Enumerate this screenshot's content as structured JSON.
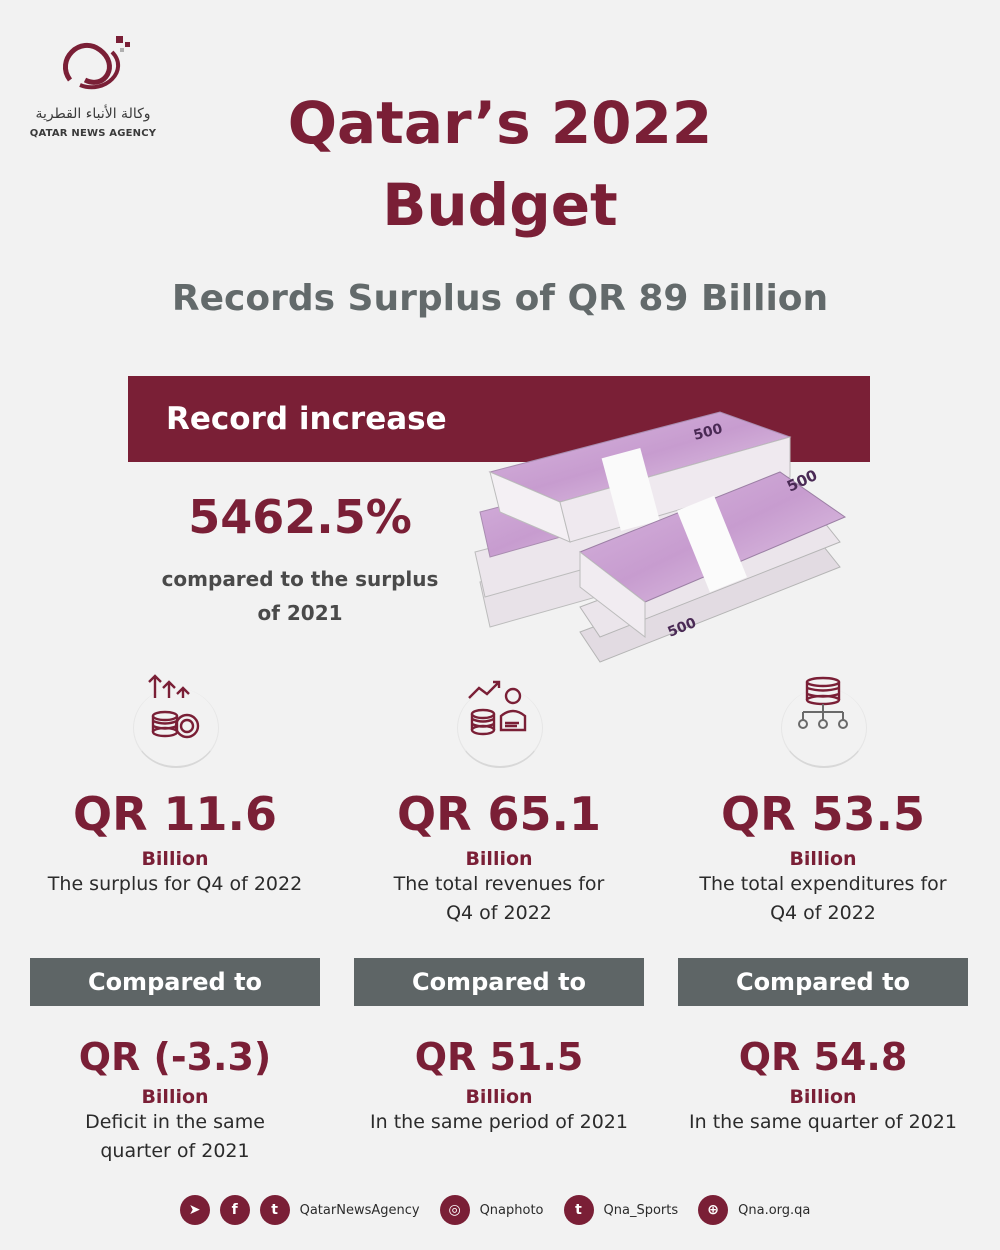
{
  "logo": {
    "arabic_name": "وكالة الأنباء القطرية",
    "english_name": "QATAR NEWS AGENCY"
  },
  "title_line1": "Qatar’s 2022",
  "title_line2": "Budget",
  "subtitle": "Records Surplus of QR 89 Billion",
  "highlight": {
    "banner": "Record increase",
    "value": "5462.5%",
    "desc_line1": "compared to the surplus",
    "desc_line2": "of 2021"
  },
  "columns": [
    {
      "icon": "coins-arrows-icon",
      "value": "QR 11.6",
      "unit": "Billion",
      "desc_line1": "The surplus for Q4 of 2022",
      "desc_line2": "",
      "compare_label": "Compared to",
      "compare_value": "QR (-3.3)",
      "compare_unit": "Billion",
      "compare_desc_line1": "Deficit in the same",
      "compare_desc_line2": "quarter of 2021"
    },
    {
      "icon": "revenue-chart-icon",
      "value": "QR 65.1",
      "unit": "Billion",
      "desc_line1": "The total revenues for",
      "desc_line2": "Q4 of 2022",
      "compare_label": "Compared to",
      "compare_value": "QR 51.5",
      "compare_unit": "Billion",
      "compare_desc_line1": "In the same period of 2021",
      "compare_desc_line2": ""
    },
    {
      "icon": "coins-distribution-icon",
      "value": "QR 53.5",
      "unit": "Billion",
      "desc_line1": "The total expenditures for",
      "desc_line2": "Q4 of 2022",
      "compare_label": "Compared to",
      "compare_value": "QR 54.8",
      "compare_unit": "Billion",
      "compare_desc_line1": "In the same quarter of 2021",
      "compare_desc_line2": ""
    }
  ],
  "footer": {
    "handle1": "QatarNewsAgency",
    "handle2": "Qnaphoto",
    "handle3": "Qna_Sports",
    "handle4": "Qna.org.qa"
  },
  "banknote_label": "500",
  "colors": {
    "brand": "#7a1f36",
    "gray_bar": "#5e6566",
    "subtitle": "#636a6b"
  }
}
